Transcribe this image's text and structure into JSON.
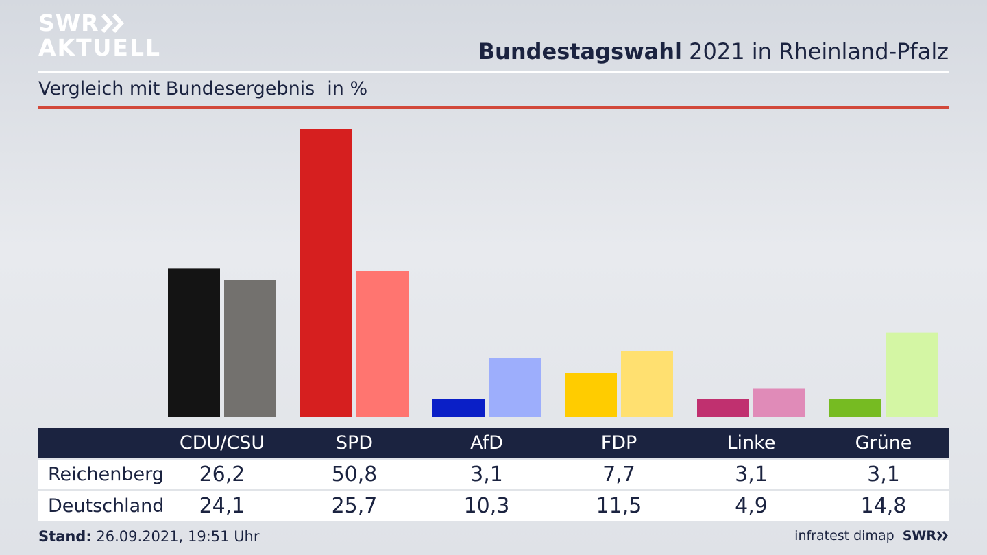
{
  "branding": {
    "logo_line1": "SWR",
    "logo_line2": "AKTUELL",
    "footer_logo": "SWR",
    "source": "infratest dimap"
  },
  "header": {
    "title_bold": "Bundestagswahl",
    "title_rest": "2021 in Rheinland-Pfalz",
    "subtitle": "Vergleich mit Bundesergebnis",
    "unit": "in %"
  },
  "footer": {
    "stand_label": "Stand:",
    "stand_value": "26.09.2021, 19:51 Uhr"
  },
  "chart_data": {
    "type": "bar",
    "categories": [
      "CDU/CSU",
      "SPD",
      "AfD",
      "FDP",
      "Linke",
      "Grüne"
    ],
    "series": [
      {
        "name": "Reichenberg",
        "values": [
          26.2,
          50.8,
          3.1,
          7.7,
          3.1,
          3.1
        ],
        "colors": [
          "#141414",
          "#d61f1f",
          "#0a1fc7",
          "#ffcc00",
          "#c0306f",
          "#76bb22"
        ]
      },
      {
        "name": "Deutschland",
        "values": [
          24.1,
          25.7,
          10.3,
          11.5,
          4.9,
          14.8
        ],
        "colors": [
          "#73716e",
          "#ff7570",
          "#9daefc",
          "#ffe070",
          "#e08bb8",
          "#d4f6a4"
        ]
      }
    ],
    "value_labels": {
      "Reichenberg": [
        "26,2",
        "50,8",
        "3,1",
        "7,7",
        "3,1",
        "3,1"
      ],
      "Deutschland": [
        "24,1",
        "25,7",
        "10,3",
        "11,5",
        "4,9",
        "14,8"
      ]
    },
    "grid": false
  }
}
